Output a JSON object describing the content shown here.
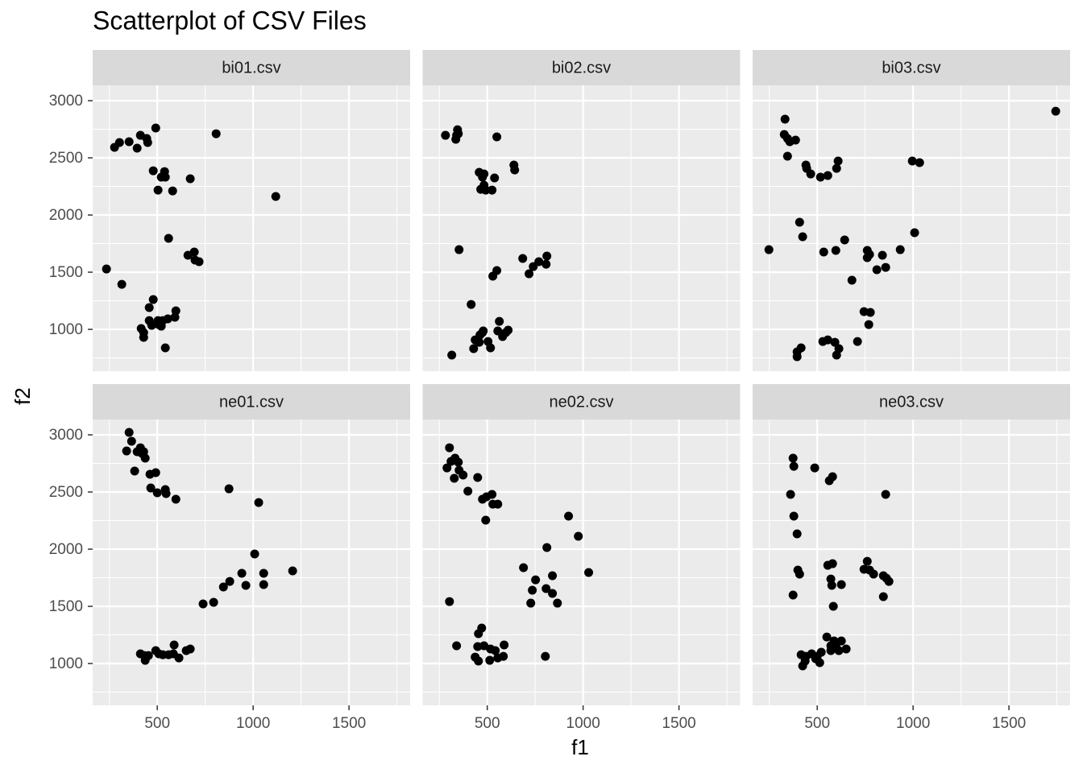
{
  "title": "Scatterplot of CSV Files",
  "x_label": "f1",
  "y_label": "f2",
  "chart_data": [
    {
      "type": "scatter",
      "title": "bi01.csv",
      "color": "#000000",
      "grid": true,
      "xlim": [
        163,
        1819
      ],
      "ylim": [
        634,
        3134
      ],
      "xticks": [
        500,
        1000,
        1500
      ],
      "yticks": [
        1000,
        1500,
        2000,
        2500,
        3000
      ],
      "x": [
        277,
        303,
        353,
        395,
        412,
        445,
        450,
        492,
        807,
        479,
        538,
        521,
        542,
        672,
        504,
        580,
        1118,
        559,
        660,
        693,
        697,
        718,
        235,
        315,
        479,
        458,
        416,
        429,
        429,
        471,
        458,
        508,
        529,
        555,
        504,
        597,
        592,
        542,
        521
      ],
      "y": [
        2592,
        2634,
        2641,
        2585,
        2697,
        2669,
        2634,
        2761,
        2711,
        2387,
        2380,
        2331,
        2331,
        2317,
        2218,
        2211,
        2162,
        1796,
        1648,
        1676,
        1606,
        1592,
        1528,
        1394,
        1261,
        1190,
        1007,
        972,
        930,
        1035,
        1077,
        1042,
        1077,
        1092,
        1077,
        1162,
        1106,
        838,
        1028
      ]
    },
    {
      "type": "scatter",
      "title": "bi02.csv",
      "color": "#000000",
      "grid": true,
      "xlim": [
        163,
        1819
      ],
      "ylim": [
        634,
        3134
      ],
      "xticks": [
        500,
        1000,
        1500
      ],
      "yticks": [
        1000,
        1500,
        2000,
        2500,
        3000
      ],
      "x": [
        282,
        345,
        349,
        336,
        340,
        550,
        639,
        643,
        458,
        483,
        475,
        538,
        483,
        492,
        525,
        466,
        353,
        685,
        811,
        769,
        807,
        740,
        718,
        550,
        529,
        416,
        563,
        609,
        597,
        580,
        555,
        479,
        462,
        475,
        437,
        458,
        504,
        517,
        429,
        315
      ],
      "y": [
        2697,
        2746,
        2711,
        2662,
        2697,
        2683,
        2437,
        2394,
        2373,
        2359,
        2331,
        2324,
        2261,
        2218,
        2218,
        2225,
        1697,
        1620,
        1641,
        1592,
        1570,
        1549,
        1486,
        1514,
        1465,
        1218,
        1070,
        993,
        972,
        937,
        986,
        986,
        951,
        972,
        908,
        887,
        894,
        838,
        831,
        775
      ]
    },
    {
      "type": "scatter",
      "title": "bi03.csv",
      "color": "#000000",
      "grid": true,
      "xlim": [
        163,
        1819
      ],
      "ylim": [
        634,
        3134
      ],
      "xticks": [
        500,
        1000,
        1500
      ],
      "yticks": [
        1000,
        1500,
        2000,
        2500,
        3000
      ],
      "x": [
        332,
        328,
        345,
        357,
        387,
        345,
        441,
        445,
        466,
        517,
        555,
        609,
        601,
        996,
        1034,
        1744,
        248,
        408,
        424,
        643,
        534,
        597,
        761,
        773,
        761,
        840,
        933,
        1008,
        857,
        811,
        681,
        744,
        777,
        769,
        592,
        555,
        529,
        416,
        395,
        395,
        601,
        613,
        710
      ],
      "y": [
        2838,
        2704,
        2669,
        2641,
        2655,
        2514,
        2437,
        2408,
        2359,
        2331,
        2345,
        2472,
        2408,
        2472,
        2458,
        2908,
        1697,
        1937,
        1810,
        1782,
        1676,
        1690,
        1690,
        1655,
        1627,
        1648,
        1697,
        1845,
        1542,
        1521,
        1430,
        1155,
        1148,
        1042,
        887,
        908,
        894,
        838,
        803,
        761,
        775,
        831,
        894
      ]
    },
    {
      "type": "scatter",
      "title": "ne01.csv",
      "color": "#000000",
      "grid": true,
      "xlim": [
        163,
        1819
      ],
      "ylim": [
        634,
        3134
      ],
      "xticks": [
        500,
        1000,
        1500
      ],
      "yticks": [
        1000,
        1500,
        2000,
        2500,
        3000
      ],
      "x": [
        353,
        366,
        340,
        395,
        412,
        429,
        420,
        437,
        382,
        462,
        492,
        466,
        500,
        542,
        546,
        597,
        874,
        1029,
        1008,
        941,
        1055,
        1206,
        878,
        845,
        962,
        1055,
        794,
        739,
        412,
        433,
        437,
        454,
        492,
        508,
        529,
        559,
        588,
        584,
        613,
        651,
        672
      ],
      "y": [
        3021,
        2944,
        2859,
        2852,
        2887,
        2852,
        2838,
        2796,
        2683,
        2655,
        2669,
        2535,
        2493,
        2521,
        2486,
        2437,
        2528,
        2408,
        1958,
        1789,
        1789,
        1810,
        1718,
        1669,
        1683,
        1690,
        1535,
        1521,
        1085,
        1070,
        1028,
        1070,
        1113,
        1085,
        1077,
        1077,
        1162,
        1085,
        1049,
        1113,
        1127
      ]
    },
    {
      "type": "scatter",
      "title": "ne02.csv",
      "color": "#000000",
      "grid": true,
      "xlim": [
        163,
        1819
      ],
      "ylim": [
        634,
        3134
      ],
      "xticks": [
        500,
        1000,
        1500
      ],
      "yticks": [
        1000,
        1500,
        2000,
        2500,
        3000
      ],
      "x": [
        303,
        290,
        311,
        332,
        349,
        328,
        353,
        374,
        399,
        450,
        475,
        496,
        525,
        529,
        555,
        492,
        924,
        975,
        811,
        1029,
        689,
        840,
        752,
        735,
        807,
        840,
        866,
        727,
        303,
        340,
        471,
        454,
        450,
        483,
        588,
        517,
        542,
        437,
        454,
        513,
        555,
        584,
        803
      ],
      "y": [
        2887,
        2711,
        2768,
        2796,
        2761,
        2620,
        2690,
        2648,
        2507,
        2627,
        2437,
        2458,
        2479,
        2394,
        2394,
        2254,
        2289,
        2113,
        2014,
        1796,
        1838,
        1768,
        1732,
        1641,
        1655,
        1613,
        1528,
        1528,
        1542,
        1155,
        1310,
        1261,
        1148,
        1155,
        1162,
        1127,
        1113,
        1056,
        1021,
        1028,
        1049,
        1063,
        1063
      ]
    },
    {
      "type": "scatter",
      "title": "ne03.csv",
      "color": "#000000",
      "grid": true,
      "xlim": [
        163,
        1819
      ],
      "ylim": [
        634,
        3134
      ],
      "xticks": [
        500,
        1000,
        1500
      ],
      "yticks": [
        1000,
        1500,
        2000,
        2500,
        3000
      ],
      "x": [
        374,
        378,
        487,
        580,
        563,
        361,
        857,
        378,
        395,
        399,
        408,
        374,
        555,
        580,
        761,
        744,
        773,
        794,
        845,
        861,
        874,
        845,
        571,
        576,
        626,
        584,
        550,
        588,
        626,
        571,
        597,
        651,
        613,
        571,
        500,
        471,
        441,
        416,
        437,
        492,
        513,
        424,
        521
      ],
      "y": [
        2796,
        2725,
        2711,
        2634,
        2599,
        2479,
        2479,
        2289,
        2134,
        1817,
        1782,
        1599,
        1859,
        1873,
        1894,
        1824,
        1817,
        1782,
        1768,
        1746,
        1718,
        1585,
        1739,
        1683,
        1690,
        1500,
        1232,
        1197,
        1197,
        1155,
        1148,
        1127,
        1113,
        1113,
        1063,
        1085,
        1063,
        1077,
        1021,
        1042,
        1007,
        979,
        1099
      ]
    }
  ]
}
